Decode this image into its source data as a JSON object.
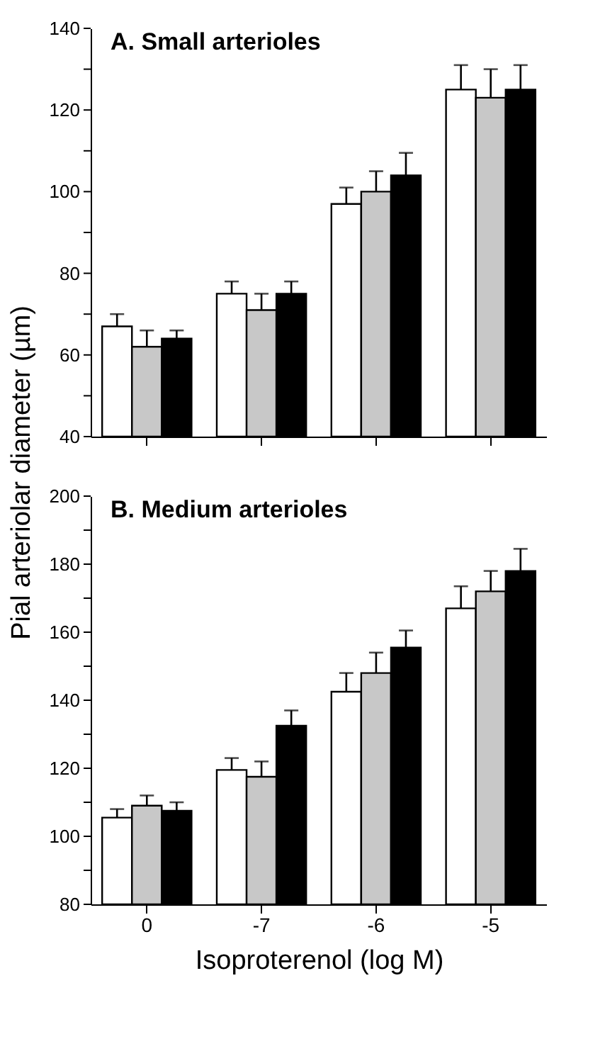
{
  "chart_data": [
    {
      "type": "bar",
      "title": "A. Small arterioles",
      "ylabel": "Pial arteriolar diameter (µm)",
      "categories": [
        "0",
        "-7",
        "-6",
        "-5"
      ],
      "tick_labels": "y",
      "series": [
        {
          "color": "#ffffff",
          "values": [
            67,
            75,
            97,
            125
          ],
          "errors": [
            [
              67,
              70
            ],
            [
              75,
              78
            ],
            [
              97,
              101
            ],
            [
              125,
              131
            ]
          ]
        },
        {
          "color": "#c8c8c8",
          "values": [
            62,
            71,
            100,
            123
          ],
          "errors": [
            [
              62,
              66
            ],
            [
              71,
              75
            ],
            [
              100,
              105
            ],
            [
              123,
              130
            ]
          ]
        },
        {
          "color": "#000000",
          "values": [
            64,
            75,
            104,
            125
          ],
          "errors": [
            [
              64,
              66
            ],
            [
              75,
              78
            ],
            [
              104,
              109.5
            ],
            [
              125,
              131
            ]
          ]
        }
      ],
      "ylim": [
        40,
        140
      ],
      "yticks": [
        40,
        {
          "value": 50,
          "label": null
        },
        60,
        {
          "value": 70,
          "label": null
        },
        80,
        {
          "value": 90,
          "label": null
        },
        100,
        {
          "value": 110,
          "label": null
        },
        120,
        {
          "value": 130,
          "label": null
        },
        140
      ],
      "grid": false,
      "legend": false
    },
    {
      "type": "bar",
      "title": "B. Medium arterioles",
      "xlabel": "Isoproterenol (log M)",
      "categories": [
        "0",
        "-7",
        "-6",
        "-5"
      ],
      "series": [
        {
          "color": "#ffffff",
          "values": [
            105.5,
            119.5,
            142.5,
            167
          ],
          "errors": [
            [
              105.5,
              108
            ],
            [
              119.5,
              123
            ],
            [
              142.5,
              148
            ],
            [
              167,
              173.5
            ]
          ]
        },
        {
          "color": "#c8c8c8",
          "values": [
            109,
            117.5,
            148,
            172
          ],
          "errors": [
            [
              109,
              112
            ],
            [
              117.5,
              122
            ],
            [
              148,
              154
            ],
            [
              172,
              178
            ]
          ]
        },
        {
          "color": "#000000",
          "values": [
            107.5,
            132.5,
            155.5,
            178
          ],
          "errors": [
            [
              107.5,
              110
            ],
            [
              132.5,
              137
            ],
            [
              155.5,
              160.5
            ],
            [
              178,
              184.5
            ]
          ]
        }
      ],
      "ylim": [
        80,
        200
      ],
      "yticks": [
        80,
        {
          "value": 90,
          "label": null
        },
        100,
        {
          "value": 110,
          "label": null
        },
        120,
        {
          "value": 130,
          "label": null
        },
        140,
        {
          "value": 150,
          "label": null
        },
        160,
        {
          "value": 170,
          "label": null
        },
        180,
        {
          "value": 190,
          "label": null
        },
        200
      ],
      "grid": false,
      "legend": false
    }
  ]
}
